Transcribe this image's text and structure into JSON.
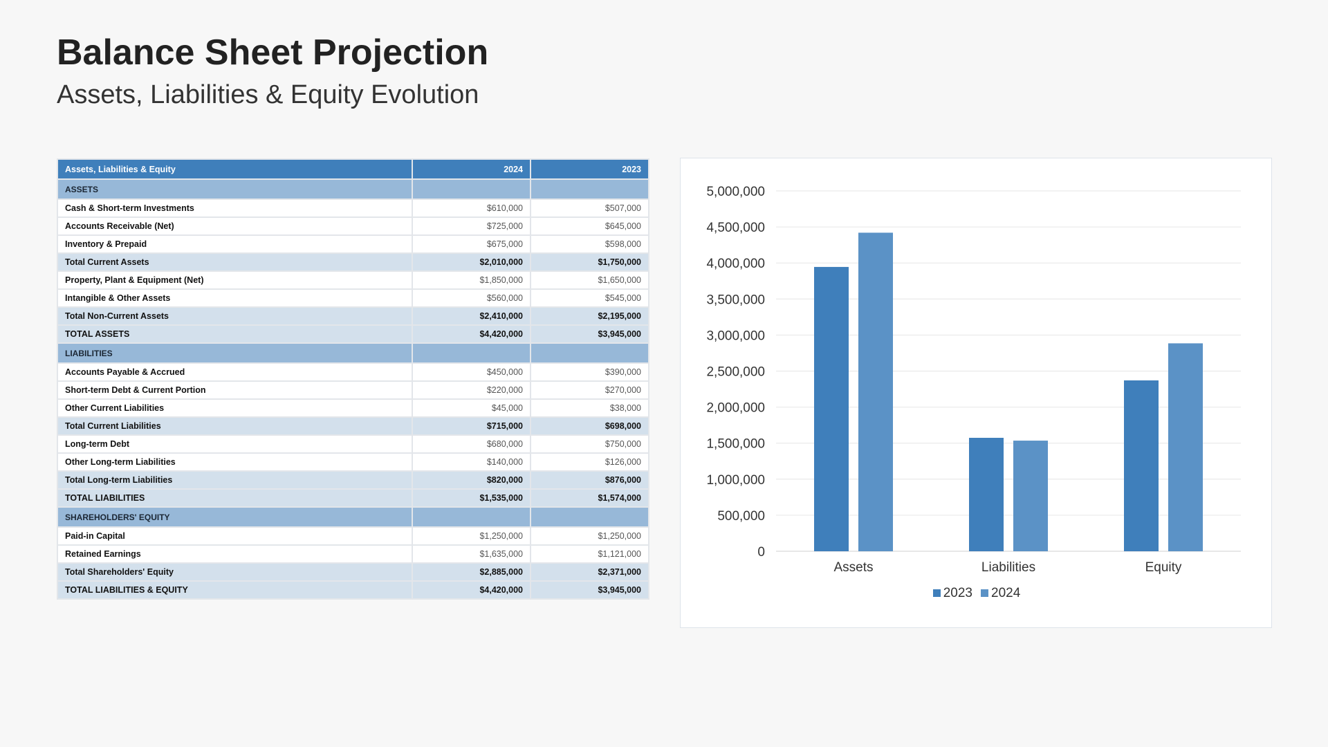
{
  "header": {
    "title": "Balance Sheet Projection",
    "subtitle": "Assets, Liabilities & Equity Evolution"
  },
  "table": {
    "columns": [
      "Assets, Liabilities & Equity",
      "2024",
      "2023"
    ],
    "rows": [
      {
        "kind": "section",
        "label": "ASSETS",
        "v2024": "",
        "v2023": ""
      },
      {
        "kind": "item",
        "label": "Cash & Short-term Investments",
        "v2024": "$610,000",
        "v2023": "$507,000"
      },
      {
        "kind": "item",
        "label": "Accounts Receivable (Net)",
        "v2024": "$725,000",
        "v2023": "$645,000"
      },
      {
        "kind": "item",
        "label": "Inventory & Prepaid",
        "v2024": "$675,000",
        "v2023": "$598,000"
      },
      {
        "kind": "total",
        "label": "Total Current Assets",
        "v2024": "$2,010,000",
        "v2023": "$1,750,000"
      },
      {
        "kind": "item",
        "label": "Property, Plant & Equipment (Net)",
        "v2024": "$1,850,000",
        "v2023": "$1,650,000"
      },
      {
        "kind": "item",
        "label": "Intangible & Other Assets",
        "v2024": "$560,000",
        "v2023": "$545,000"
      },
      {
        "kind": "total",
        "label": "Total Non-Current Assets",
        "v2024": "$2,410,000",
        "v2023": "$2,195,000"
      },
      {
        "kind": "total",
        "label": "TOTAL ASSETS",
        "v2024": "$4,420,000",
        "v2023": "$3,945,000"
      },
      {
        "kind": "section",
        "label": "LIABILITIES",
        "v2024": "",
        "v2023": ""
      },
      {
        "kind": "item",
        "label": "Accounts Payable & Accrued",
        "v2024": "$450,000",
        "v2023": "$390,000"
      },
      {
        "kind": "item",
        "label": "Short-term Debt & Current Portion",
        "v2024": "$220,000",
        "v2023": "$270,000"
      },
      {
        "kind": "item",
        "label": "Other Current Liabilities",
        "v2024": "$45,000",
        "v2023": "$38,000"
      },
      {
        "kind": "total",
        "label": "Total Current Liabilities",
        "v2024": "$715,000",
        "v2023": "$698,000"
      },
      {
        "kind": "item",
        "label": "Long-term Debt",
        "v2024": "$680,000",
        "v2023": "$750,000"
      },
      {
        "kind": "item",
        "label": "Other Long-term Liabilities",
        "v2024": "$140,000",
        "v2023": "$126,000"
      },
      {
        "kind": "total",
        "label": "Total Long-term Liabilities",
        "v2024": "$820,000",
        "v2023": "$876,000"
      },
      {
        "kind": "total",
        "label": "TOTAL LIABILITIES",
        "v2024": "$1,535,000",
        "v2023": "$1,574,000"
      },
      {
        "kind": "section",
        "label": "SHAREHOLDERS' EQUITY",
        "v2024": "",
        "v2023": ""
      },
      {
        "kind": "item",
        "label": "Paid-in Capital",
        "v2024": "$1,250,000",
        "v2023": "$1,250,000"
      },
      {
        "kind": "item",
        "label": "Retained Earnings",
        "v2024": "$1,635,000",
        "v2023": "$1,121,000"
      },
      {
        "kind": "total",
        "label": "Total Shareholders' Equity",
        "v2024": "$2,885,000",
        "v2023": "$2,371,000"
      },
      {
        "kind": "total",
        "label": "TOTAL LIABILITIES & EQUITY",
        "v2024": "$4,420,000",
        "v2023": "$3,945,000"
      }
    ]
  },
  "colors": {
    "header_blue": "#3f7fbb",
    "section_blue": "#97b8d8",
    "total_blue": "#d3e0ec",
    "series_2023": "#3f7fbb",
    "series_2024": "#5b92c6"
  },
  "chart_data": {
    "type": "bar",
    "categories": [
      "Assets",
      "Liabilities",
      "Equity"
    ],
    "series": [
      {
        "name": "2023",
        "values": [
          3945000,
          1574000,
          2371000
        ],
        "color": "#3f7fbb"
      },
      {
        "name": "2024",
        "values": [
          4420000,
          1535000,
          2885000
        ],
        "color": "#5b92c6"
      }
    ],
    "ylim": [
      0,
      5000000
    ],
    "yticks": [
      0,
      500000,
      1000000,
      1500000,
      2000000,
      2500000,
      3000000,
      3500000,
      4000000,
      4500000,
      5000000
    ],
    "ytick_labels": [
      "0",
      "500,000",
      "1,000,000",
      "1,500,000",
      "2,000,000",
      "2,500,000",
      "3,000,000",
      "3,500,000",
      "4,000,000",
      "4,500,000",
      "5,000,000"
    ],
    "grid": true,
    "legend": "bottom"
  }
}
